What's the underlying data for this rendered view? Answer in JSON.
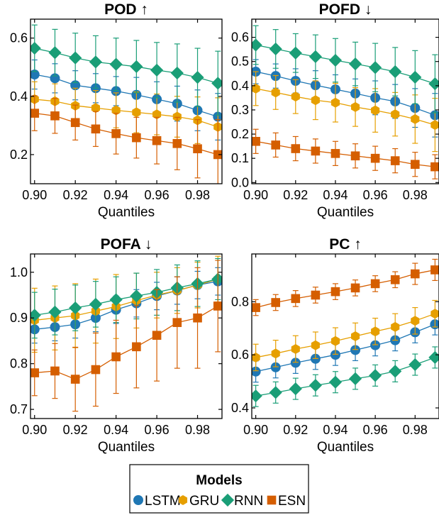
{
  "colors": {
    "LSTM": "#1f77b4",
    "GRU": "#e69f00",
    "RNN": "#1a9e77",
    "ESN": "#d55e00"
  },
  "legend": {
    "title": "Models",
    "entries": [
      {
        "name": "LSTM",
        "marker": "circle"
      },
      {
        "name": "GRU",
        "marker": "hexagon"
      },
      {
        "name": "RNN",
        "marker": "diamond"
      },
      {
        "name": "ESN",
        "marker": "square"
      }
    ]
  },
  "chart_data": [
    {
      "type": "line",
      "title": "POD ↑",
      "xlabel": "Quantiles",
      "ylabel": "",
      "x": [
        0.9,
        0.91,
        0.92,
        0.93,
        0.94,
        0.95,
        0.96,
        0.97,
        0.98,
        0.99
      ],
      "xlim": [
        0.898,
        0.992
      ],
      "ylim": [
        0.1,
        0.665
      ],
      "xticks": [
        "0.90",
        "0.92",
        "0.94",
        "0.96",
        "0.98"
      ],
      "xtick_values": [
        0.9,
        0.92,
        0.94,
        0.96,
        0.98
      ],
      "yticks": [
        "0.2",
        "0.4",
        "0.6"
      ],
      "ytick_values": [
        0.2,
        0.4,
        0.6
      ],
      "series": [
        {
          "name": "LSTM",
          "values": [
            0.475,
            0.462,
            0.438,
            0.428,
            0.418,
            0.405,
            0.39,
            0.375,
            0.352,
            0.33
          ],
          "err": [
            0.05,
            0.05,
            0.05,
            0.05,
            0.05,
            0.06,
            0.06,
            0.06,
            0.07,
            0.08
          ]
        },
        {
          "name": "GRU",
          "values": [
            0.39,
            0.383,
            0.368,
            0.36,
            0.352,
            0.345,
            0.338,
            0.33,
            0.318,
            0.295
          ],
          "err": [
            0.06,
            0.06,
            0.06,
            0.06,
            0.06,
            0.07,
            0.07,
            0.07,
            0.08,
            0.1
          ]
        },
        {
          "name": "RNN",
          "values": [
            0.565,
            0.55,
            0.532,
            0.518,
            0.51,
            0.502,
            0.49,
            0.48,
            0.465,
            0.445
          ],
          "err": [
            0.08,
            0.08,
            0.085,
            0.09,
            0.09,
            0.09,
            0.095,
            0.1,
            0.1,
            0.11
          ]
        },
        {
          "name": "ESN",
          "values": [
            0.342,
            0.333,
            0.31,
            0.288,
            0.272,
            0.258,
            0.248,
            0.238,
            0.22,
            0.2
          ],
          "err": [
            0.06,
            0.06,
            0.06,
            0.06,
            0.07,
            0.07,
            0.08,
            0.09,
            0.1,
            0.12
          ]
        }
      ]
    },
    {
      "type": "line",
      "title": "POFD ↓",
      "xlabel": "Quantiles",
      "ylabel": "",
      "x": [
        0.9,
        0.91,
        0.92,
        0.93,
        0.94,
        0.95,
        0.96,
        0.97,
        0.98,
        0.99
      ],
      "xlim": [
        0.898,
        0.992
      ],
      "ylim": [
        -0.005,
        0.675
      ],
      "xticks": [
        "0.90",
        "0.92",
        "0.94",
        "0.96",
        "0.98"
      ],
      "xtick_values": [
        0.9,
        0.92,
        0.94,
        0.96,
        0.98
      ],
      "yticks": [
        "0.0",
        "0.1",
        "0.2",
        "0.3",
        "0.4",
        "0.5",
        "0.6"
      ],
      "ytick_values": [
        0.0,
        0.1,
        0.2,
        0.3,
        0.4,
        0.5,
        0.6
      ],
      "series": [
        {
          "name": "LSTM",
          "values": [
            0.458,
            0.44,
            0.42,
            0.402,
            0.385,
            0.368,
            0.35,
            0.335,
            0.308,
            0.278
          ],
          "err": [
            0.05,
            0.05,
            0.05,
            0.06,
            0.06,
            0.06,
            0.07,
            0.07,
            0.08,
            0.09
          ]
        },
        {
          "name": "GRU",
          "values": [
            0.388,
            0.372,
            0.355,
            0.34,
            0.33,
            0.312,
            0.298,
            0.282,
            0.262,
            0.238
          ],
          "err": [
            0.07,
            0.07,
            0.07,
            0.08,
            0.08,
            0.08,
            0.09,
            0.09,
            0.1,
            0.11
          ]
        },
        {
          "name": "RNN",
          "values": [
            0.568,
            0.552,
            0.535,
            0.52,
            0.505,
            0.49,
            0.475,
            0.458,
            0.435,
            0.408
          ],
          "err": [
            0.08,
            0.08,
            0.08,
            0.09,
            0.09,
            0.09,
            0.1,
            0.1,
            0.11,
            0.12
          ]
        },
        {
          "name": "ESN",
          "values": [
            0.17,
            0.155,
            0.14,
            0.13,
            0.12,
            0.11,
            0.1,
            0.09,
            0.075,
            0.065
          ],
          "err": [
            0.05,
            0.05,
            0.05,
            0.05,
            0.05,
            0.05,
            0.05,
            0.05,
            0.05,
            0.05
          ]
        }
      ]
    },
    {
      "type": "line",
      "title": "POFA ↓",
      "xlabel": "Quantiles",
      "ylabel": "",
      "x": [
        0.9,
        0.91,
        0.92,
        0.93,
        0.94,
        0.95,
        0.96,
        0.97,
        0.98,
        0.99
      ],
      "xlim": [
        0.898,
        0.992
      ],
      "ylim": [
        0.68,
        1.04
      ],
      "xticks": [
        "0.90",
        "0.92",
        "0.94",
        "0.96",
        "0.98"
      ],
      "xtick_values": [
        0.9,
        0.92,
        0.94,
        0.96,
        0.98
      ],
      "yticks": [
        "0.7",
        "0.8",
        "0.9",
        "1.0"
      ],
      "ytick_values": [
        0.7,
        0.8,
        0.9,
        1.0
      ],
      "series": [
        {
          "name": "LSTM",
          "values": [
            0.875,
            0.88,
            0.886,
            0.9,
            0.918,
            0.932,
            0.948,
            0.96,
            0.972,
            0.98
          ],
          "err": [
            0.03,
            0.03,
            0.03,
            0.03,
            0.03,
            0.03,
            0.03,
            0.03,
            0.03,
            0.03
          ]
        },
        {
          "name": "GRU",
          "values": [
            0.895,
            0.9,
            0.905,
            0.915,
            0.925,
            0.938,
            0.95,
            0.96,
            0.972,
            0.985
          ],
          "err": [
            0.07,
            0.07,
            0.07,
            0.07,
            0.07,
            0.06,
            0.05,
            0.05,
            0.05,
            0.05
          ]
        },
        {
          "name": "RNN",
          "values": [
            0.906,
            0.913,
            0.922,
            0.93,
            0.94,
            0.948,
            0.956,
            0.966,
            0.975,
            0.985
          ],
          "err": [
            0.05,
            0.05,
            0.05,
            0.05,
            0.05,
            0.05,
            0.05,
            0.05,
            0.05,
            0.045
          ]
        },
        {
          "name": "ESN",
          "values": [
            0.78,
            0.784,
            0.766,
            0.787,
            0.815,
            0.837,
            0.862,
            0.89,
            0.9,
            0.926
          ],
          "err": [
            0.05,
            0.06,
            0.07,
            0.08,
            0.08,
            0.09,
            0.1,
            0.1,
            0.11,
            0.1
          ]
        }
      ]
    },
    {
      "type": "line",
      "title": "PC ↑",
      "xlabel": "Quantiles",
      "ylabel": "",
      "x": [
        0.9,
        0.91,
        0.92,
        0.93,
        0.94,
        0.95,
        0.96,
        0.97,
        0.98,
        0.99
      ],
      "xlim": [
        0.898,
        0.992
      ],
      "ylim": [
        0.36,
        0.98
      ],
      "xticks": [
        "0.90",
        "0.92",
        "0.94",
        "0.96",
        "0.98"
      ],
      "xtick_values": [
        0.9,
        0.92,
        0.94,
        0.96,
        0.98
      ],
      "yticks": [
        "0.4",
        "0.6",
        "0.8"
      ],
      "ytick_values": [
        0.4,
        0.6,
        0.8
      ],
      "series": [
        {
          "name": "LSTM",
          "values": [
            0.537,
            0.553,
            0.57,
            0.585,
            0.6,
            0.618,
            0.636,
            0.655,
            0.685,
            0.715
          ],
          "err": [
            0.04,
            0.04,
            0.04,
            0.04,
            0.04,
            0.04,
            0.04,
            0.04,
            0.04,
            0.04
          ]
        },
        {
          "name": "GRU",
          "values": [
            0.59,
            0.605,
            0.622,
            0.636,
            0.652,
            0.67,
            0.688,
            0.705,
            0.728,
            0.755
          ],
          "err": [
            0.05,
            0.05,
            0.05,
            0.05,
            0.05,
            0.05,
            0.05,
            0.05,
            0.05,
            0.05
          ]
        },
        {
          "name": "RNN",
          "values": [
            0.445,
            0.458,
            0.472,
            0.485,
            0.497,
            0.51,
            0.522,
            0.538,
            0.563,
            0.59
          ],
          "err": [
            0.04,
            0.04,
            0.04,
            0.04,
            0.04,
            0.04,
            0.04,
            0.04,
            0.04,
            0.04
          ]
        },
        {
          "name": "ESN",
          "values": [
            0.778,
            0.797,
            0.812,
            0.825,
            0.838,
            0.852,
            0.868,
            0.883,
            0.905,
            0.92
          ],
          "err": [
            0.03,
            0.03,
            0.03,
            0.03,
            0.03,
            0.03,
            0.03,
            0.03,
            0.04,
            0.04
          ]
        }
      ]
    }
  ]
}
